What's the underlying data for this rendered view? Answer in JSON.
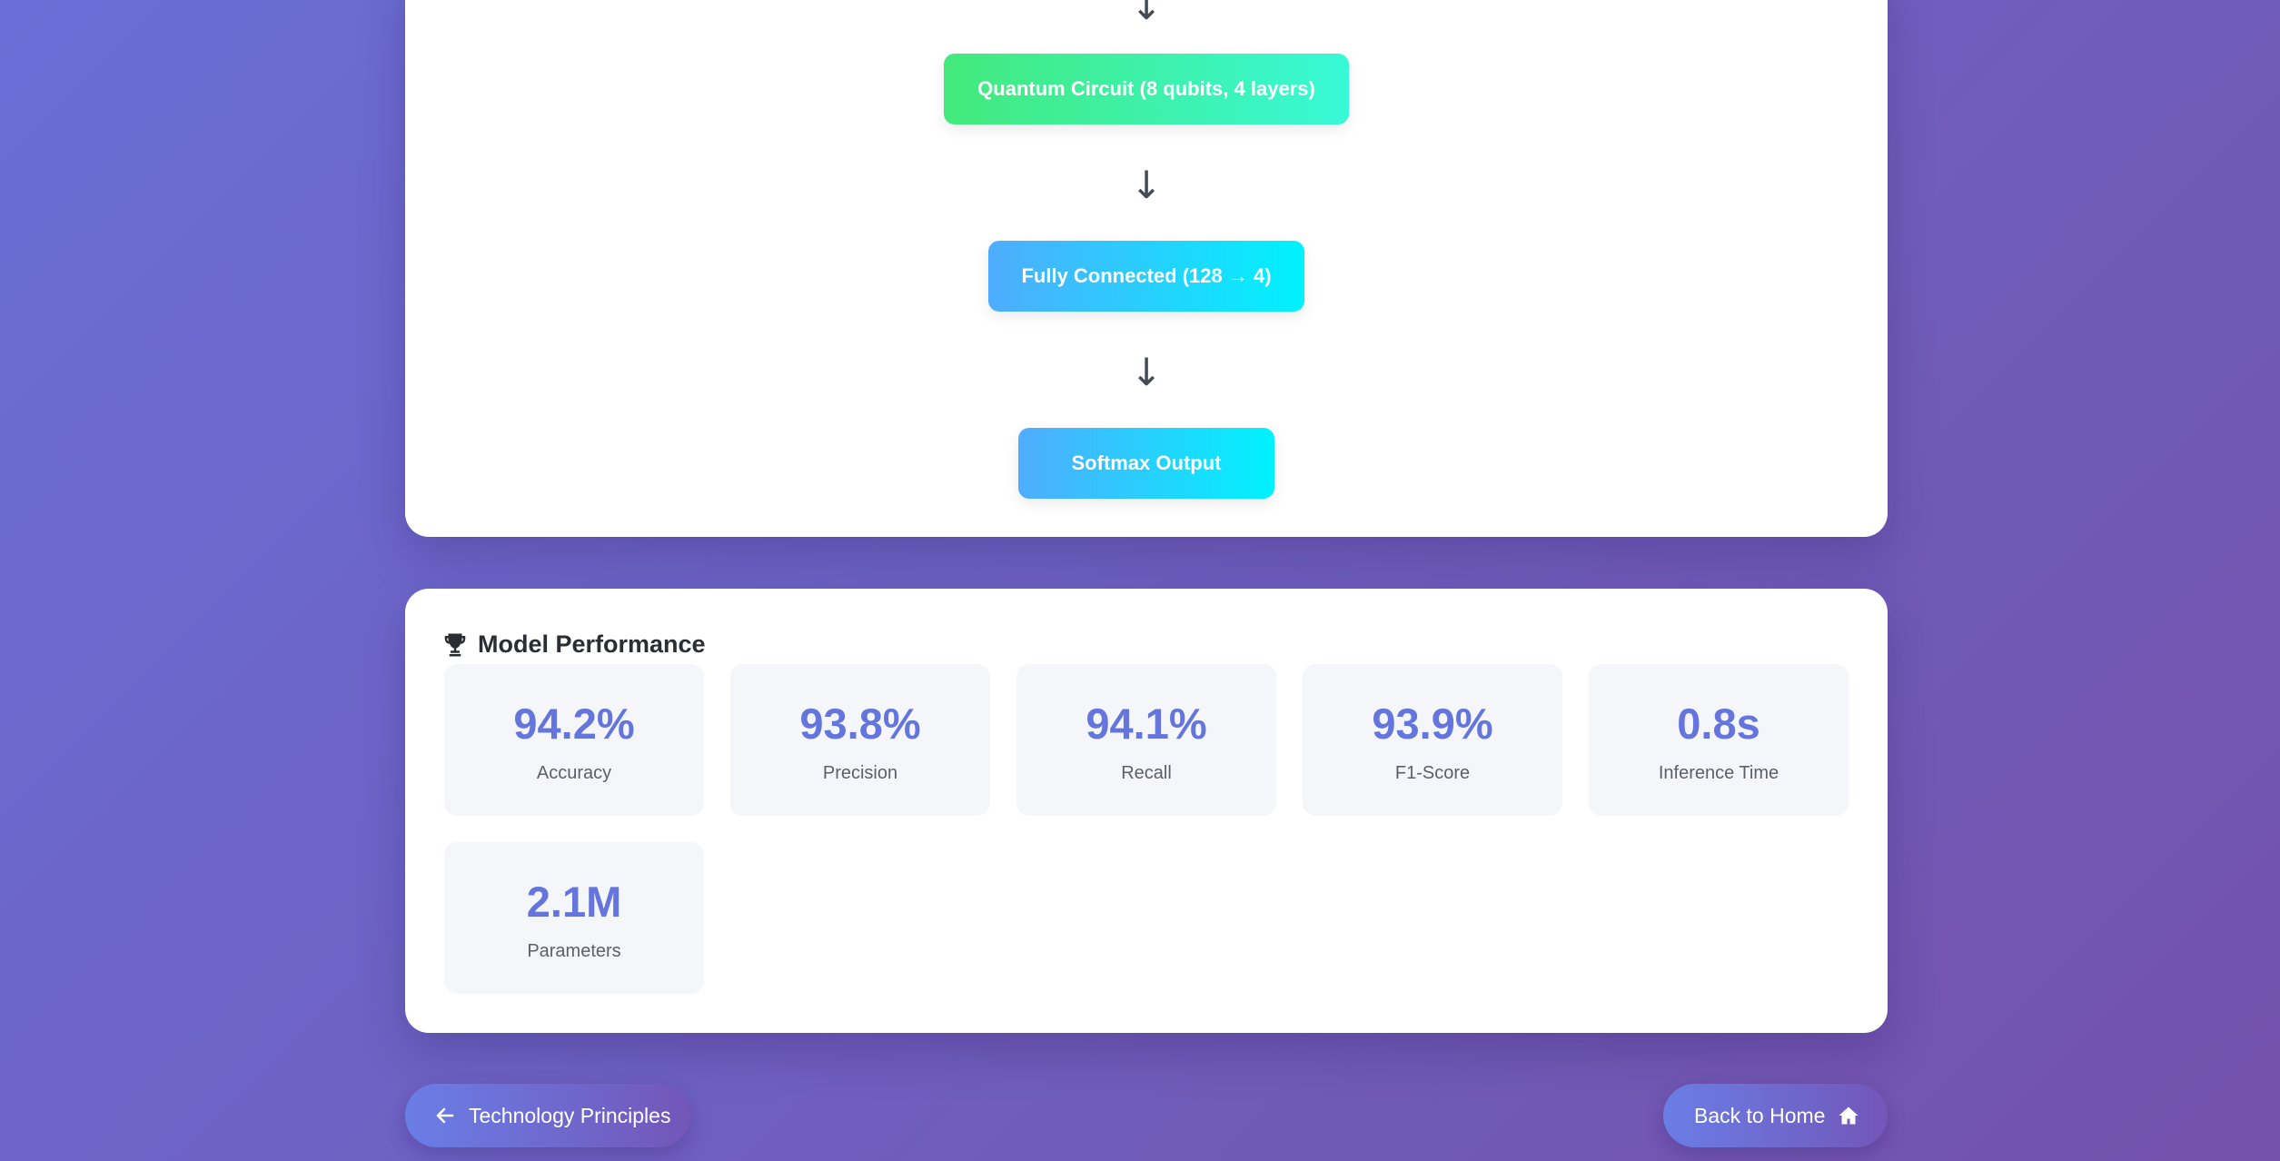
{
  "architecture": {
    "layers": [
      {
        "label": "Quantum Circuit (8 qubits, 4 layers)",
        "style": "green"
      },
      {
        "label": "Fully Connected (128 → 4)",
        "style": "blue"
      },
      {
        "label": "Softmax Output",
        "style": "blue"
      }
    ],
    "arrow_glyph": "↓"
  },
  "performance": {
    "title": "Model Performance",
    "icon": "trophy-icon",
    "metrics": [
      {
        "value": "94.2%",
        "label": "Accuracy"
      },
      {
        "value": "93.8%",
        "label": "Precision"
      },
      {
        "value": "94.1%",
        "label": "Recall"
      },
      {
        "value": "93.9%",
        "label": "F1-Score"
      },
      {
        "value": "0.8s",
        "label": "Inference Time"
      },
      {
        "value": "2.1M",
        "label": "Parameters"
      }
    ]
  },
  "navigation": {
    "prev_label": "Technology Principles",
    "prev_icon": "arrow-left-icon",
    "home_label": "Back to Home",
    "home_icon": "home-icon"
  },
  "colors": {
    "background_start": "#6a6ed6",
    "background_end": "#7352ab",
    "metric_value": "#6475dd",
    "layer_green_start": "#43e97b",
    "layer_green_end": "#38f9d7",
    "layer_blue_start": "#4facfe",
    "layer_blue_end": "#00f2fe"
  }
}
